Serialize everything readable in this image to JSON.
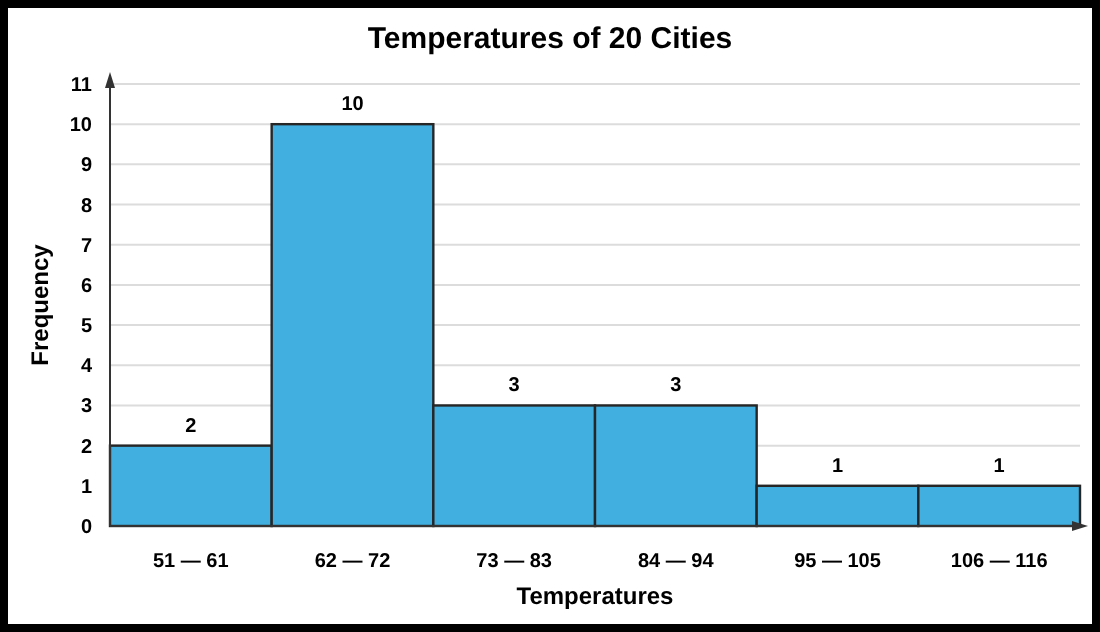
{
  "chart_data": {
    "type": "bar",
    "title": "Temperatures of 20 Cities",
    "xlabel": "Temperatures",
    "ylabel": "Frequency",
    "categories": [
      "51 — 61",
      "62 — 72",
      "73 — 83",
      "84 — 94",
      "95 — 105",
      "106 — 116"
    ],
    "values": [
      2,
      10,
      3,
      3,
      1,
      1
    ],
    "color": "#41b0e0",
    "ylim": [
      0,
      11
    ],
    "yticks": [
      0,
      1,
      2,
      3,
      4,
      5,
      6,
      7,
      8,
      9,
      10,
      11
    ],
    "grid": "y",
    "data_labels": true
  }
}
